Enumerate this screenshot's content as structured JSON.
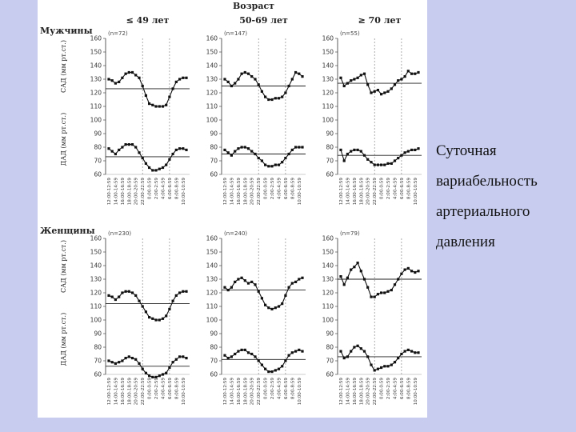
{
  "header": {
    "age_title": "Возраст",
    "groups": [
      "≤ 49 лет",
      "50-69 лет",
      "≥ 70 лет"
    ]
  },
  "rows": [
    {
      "label": "Мужчины",
      "n": [
        "(n=72)",
        "(n=147)",
        "(n=55)"
      ]
    },
    {
      "label": "Женщины",
      "n": [
        "(n=230)",
        "(n=240)",
        "(n=79)"
      ]
    }
  ],
  "axis": {
    "sad_label": "САД (мм рт.ст.)",
    "dad_label": "ДАД (мм рт.ст.)",
    "ylim": [
      60,
      160
    ],
    "yticks": [
      160,
      150,
      140,
      130,
      120,
      110,
      100,
      90,
      80,
      70,
      60
    ],
    "x_tick_labels": [
      "12:00-12:59",
      "14:00-14:59",
      "16:00-16:59",
      "18:00-18:59",
      "20:00-20:59",
      "22:00-22:59",
      "0:00-0:59",
      "2:00-2:59",
      "4:00-4:59",
      "6:00-6:59",
      "8:00-8:59",
      "10:00-10:59"
    ]
  },
  "caption": [
    "Суточная",
    "вариабельность",
    "артериального",
    "давления"
  ],
  "chart_data": [
    {
      "type": "line",
      "row": "Мужчины",
      "group": "≤ 49 лет",
      "x": [
        "12",
        "13",
        "14",
        "15",
        "16",
        "17",
        "18",
        "19",
        "20",
        "21",
        "22",
        "23",
        "0",
        "1",
        "2",
        "3",
        "4",
        "5",
        "6",
        "7",
        "8",
        "9",
        "10",
        "11"
      ],
      "series": [
        {
          "values": [
            130,
            129,
            127,
            128,
            131,
            134,
            135,
            135,
            133,
            131,
            125,
            118,
            112,
            111,
            110,
            110,
            110,
            111,
            117,
            123,
            128,
            130,
            131,
            131
          ],
          "mean_line": 123
        },
        {
          "values": [
            79,
            77,
            75,
            78,
            80,
            82,
            82,
            82,
            80,
            76,
            72,
            68,
            65,
            63,
            63,
            64,
            65,
            67,
            71,
            75,
            78,
            79,
            79,
            78
          ],
          "mean_line": 73
        }
      ]
    },
    {
      "type": "line",
      "row": "Мужчины",
      "group": "50-69 лет",
      "x": [
        "12",
        "13",
        "14",
        "15",
        "16",
        "17",
        "18",
        "19",
        "20",
        "21",
        "22",
        "23",
        "0",
        "1",
        "2",
        "3",
        "4",
        "5",
        "6",
        "7",
        "8",
        "9",
        "10",
        "11"
      ],
      "series": [
        {
          "values": [
            130,
            128,
            125,
            127,
            130,
            134,
            135,
            134,
            132,
            130,
            126,
            121,
            117,
            115,
            115,
            116,
            116,
            117,
            120,
            125,
            130,
            135,
            134,
            132
          ],
          "mean_line": 125
        },
        {
          "values": [
            78,
            76,
            74,
            77,
            79,
            80,
            80,
            79,
            77,
            75,
            72,
            70,
            67,
            66,
            66,
            67,
            67,
            69,
            72,
            75,
            78,
            80,
            80,
            80
          ],
          "mean_line": 75
        }
      ]
    },
    {
      "type": "line",
      "row": "Мужчины",
      "group": "≥ 70 лет",
      "x": [
        "12",
        "13",
        "14",
        "15",
        "16",
        "17",
        "18",
        "19",
        "20",
        "21",
        "22",
        "23",
        "0",
        "1",
        "2",
        "3",
        "4",
        "5",
        "6",
        "7",
        "8",
        "9",
        "10",
        "11"
      ],
      "series": [
        {
          "values": [
            131,
            125,
            127,
            129,
            130,
            131,
            133,
            134,
            126,
            120,
            121,
            122,
            119,
            120,
            121,
            123,
            126,
            129,
            130,
            132,
            136,
            134,
            134,
            135
          ],
          "mean_line": 127
        },
        {
          "values": [
            78,
            70,
            75,
            77,
            78,
            78,
            77,
            74,
            71,
            69,
            67,
            67,
            67,
            67,
            68,
            68,
            70,
            72,
            74,
            76,
            77,
            78,
            78,
            79
          ],
          "mean_line": 74
        }
      ]
    },
    {
      "type": "line",
      "row": "Женщины",
      "group": "≤ 49 лет",
      "x": [
        "12",
        "13",
        "14",
        "15",
        "16",
        "17",
        "18",
        "19",
        "20",
        "21",
        "22",
        "23",
        "0",
        "1",
        "2",
        "3",
        "4",
        "5",
        "6",
        "7",
        "8",
        "9",
        "10",
        "11"
      ],
      "series": [
        {
          "values": [
            118,
            117,
            115,
            117,
            120,
            121,
            121,
            120,
            118,
            114,
            110,
            106,
            102,
            101,
            100,
            100,
            101,
            103,
            108,
            114,
            118,
            120,
            121,
            121
          ],
          "mean_line": 112
        },
        {
          "values": [
            70,
            69,
            68,
            69,
            70,
            72,
            73,
            72,
            71,
            68,
            64,
            61,
            59,
            58,
            58,
            59,
            60,
            61,
            65,
            69,
            71,
            73,
            73,
            72
          ],
          "mean_line": 66
        }
      ]
    },
    {
      "type": "line",
      "row": "Женщины",
      "group": "50-69 лет",
      "x": [
        "12",
        "13",
        "14",
        "15",
        "16",
        "17",
        "18",
        "19",
        "20",
        "21",
        "22",
        "23",
        "0",
        "1",
        "2",
        "3",
        "4",
        "5",
        "6",
        "7",
        "8",
        "9",
        "10",
        "11"
      ],
      "series": [
        {
          "values": [
            124,
            122,
            124,
            128,
            130,
            131,
            129,
            127,
            128,
            126,
            121,
            116,
            111,
            109,
            108,
            109,
            110,
            112,
            118,
            124,
            127,
            128,
            130,
            131
          ],
          "mean_line": 122
        },
        {
          "values": [
            74,
            72,
            73,
            75,
            77,
            78,
            78,
            76,
            75,
            73,
            70,
            67,
            64,
            62,
            62,
            63,
            64,
            66,
            70,
            74,
            76,
            77,
            78,
            77
          ],
          "mean_line": 71
        }
      ]
    },
    {
      "type": "line",
      "row": "Женщины",
      "group": "≥ 70 лет",
      "x": [
        "12",
        "13",
        "14",
        "15",
        "16",
        "17",
        "18",
        "19",
        "20",
        "21",
        "22",
        "23",
        "0",
        "1",
        "2",
        "3",
        "4",
        "5",
        "6",
        "7",
        "8",
        "9",
        "10",
        "11"
      ],
      "series": [
        {
          "values": [
            132,
            126,
            131,
            137,
            139,
            142,
            136,
            130,
            124,
            117,
            117,
            119,
            120,
            120,
            121,
            122,
            126,
            130,
            134,
            137,
            138,
            136,
            135,
            136
          ],
          "mean_line": 130
        },
        {
          "values": [
            77,
            72,
            73,
            77,
            80,
            81,
            79,
            77,
            73,
            67,
            63,
            64,
            65,
            66,
            66,
            67,
            69,
            72,
            75,
            77,
            78,
            77,
            76,
            76
          ],
          "mean_line": 73
        }
      ]
    }
  ]
}
